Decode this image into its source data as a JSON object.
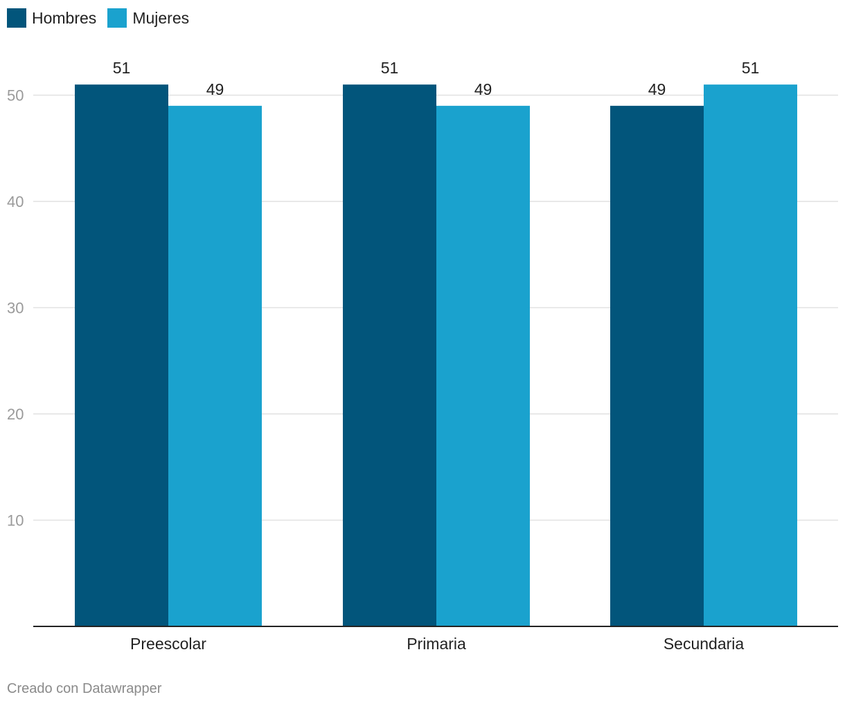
{
  "legend": [
    {
      "label": "Hombres",
      "color": "#02557b"
    },
    {
      "label": "Mujeres",
      "color": "#1aa2ce"
    }
  ],
  "footer": {
    "credit": "Creado con Datawrapper"
  },
  "chart_data": {
    "type": "bar",
    "categories": [
      "Preescolar",
      "Primaria",
      "Secundaria"
    ],
    "series": [
      {
        "name": "Hombres",
        "color": "#02557b",
        "values": [
          51,
          51,
          49
        ]
      },
      {
        "name": "Mujeres",
        "color": "#1aa2ce",
        "values": [
          49,
          49,
          51
        ]
      }
    ],
    "ylim": [
      0,
      52
    ],
    "yticks": [
      10,
      20,
      30,
      40,
      50
    ],
    "grid": true,
    "legend_position": "top-left",
    "data_labels": true
  }
}
